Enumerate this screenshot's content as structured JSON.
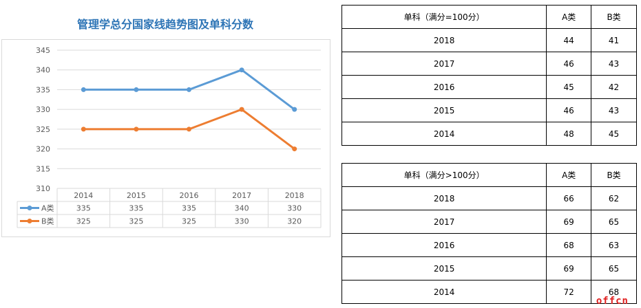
{
  "chart_data": {
    "type": "line",
    "title": "管理学总分国家线趋势图及单科分数",
    "categories": [
      "2014",
      "2015",
      "2016",
      "2017",
      "2018"
    ],
    "ylim": [
      310,
      345
    ],
    "yticks": [
      310,
      315,
      320,
      325,
      330,
      335,
      340,
      345
    ],
    "series": [
      {
        "name": "A类",
        "values": [
          335,
          335,
          335,
          340,
          330
        ],
        "color": "#5b9bd5"
      },
      {
        "name": "B类",
        "values": [
          325,
          325,
          325,
          330,
          320
        ],
        "color": "#ed7d31"
      }
    ],
    "legend": "data-table-bottom",
    "grid": true
  },
  "tables": [
    {
      "headers": [
        "单科（满分=100分）",
        "A类",
        "B类"
      ],
      "rows": [
        [
          "2018",
          "44",
          "41"
        ],
        [
          "2017",
          "46",
          "43"
        ],
        [
          "2016",
          "45",
          "42"
        ],
        [
          "2015",
          "46",
          "43"
        ],
        [
          "2014",
          "48",
          "45"
        ]
      ]
    },
    {
      "headers": [
        "单科（满分>100分）",
        "A类",
        "B类"
      ],
      "rows": [
        [
          "2018",
          "66",
          "62"
        ],
        [
          "2017",
          "69",
          "65"
        ],
        [
          "2016",
          "68",
          "63"
        ],
        [
          "2015",
          "69",
          "65"
        ],
        [
          "2014",
          "72",
          "68"
        ]
      ]
    }
  ],
  "watermark": "offcn"
}
